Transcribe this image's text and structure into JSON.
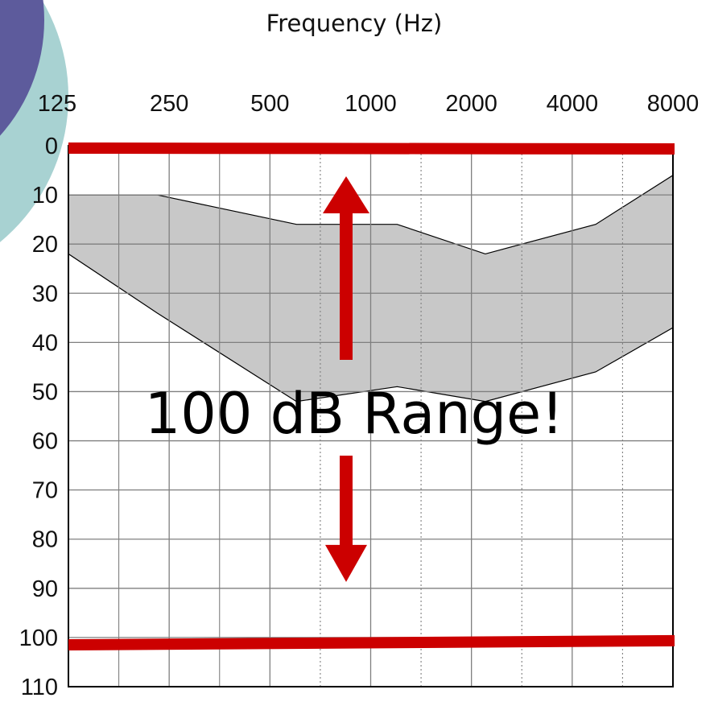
{
  "chart_data": {
    "type": "area",
    "title": "",
    "xlabel": "Frequency (Hz)",
    "ylabel": "",
    "x_tick_labels": [
      "125",
      "250",
      "500",
      "1000",
      "2000",
      "4000",
      "8000"
    ],
    "y_tick_labels": [
      "0",
      "10",
      "20",
      "30",
      "40",
      "50",
      "60",
      "70",
      "80",
      "90",
      "100",
      "110"
    ],
    "ylim": [
      0,
      110
    ],
    "y_inverted": true,
    "x_scale": "log2",
    "grid": true,
    "series": [
      {
        "band_upper": [
          [
            125,
            10
          ],
          [
            230,
            10
          ],
          [
            600,
            16
          ],
          [
            1200,
            16
          ],
          [
            2200,
            22
          ],
          [
            4700,
            16
          ],
          [
            8000,
            6
          ]
        ],
        "band_lower": [
          [
            125,
            22
          ],
          [
            230,
            34
          ],
          [
            600,
            52
          ],
          [
            1200,
            49
          ],
          [
            2200,
            52
          ],
          [
            4700,
            46
          ],
          [
            8000,
            37
          ]
        ],
        "fill": "#c8c8c8"
      }
    ],
    "reference_lines": [
      {
        "y_start": 0,
        "y_end": 0
      },
      {
        "y_start": 101,
        "y_end": 100
      }
    ],
    "annotation": {
      "text": "100 dB Range!",
      "arrow_from": 0,
      "arrow_to": 100
    },
    "colors": {
      "marker": "#cc0000",
      "band_fill": "#c8c8c8",
      "grid": "#7f7f7f",
      "decoration_teal": "#a8d2d2",
      "decoration_purple": "#5d5b9c"
    }
  }
}
